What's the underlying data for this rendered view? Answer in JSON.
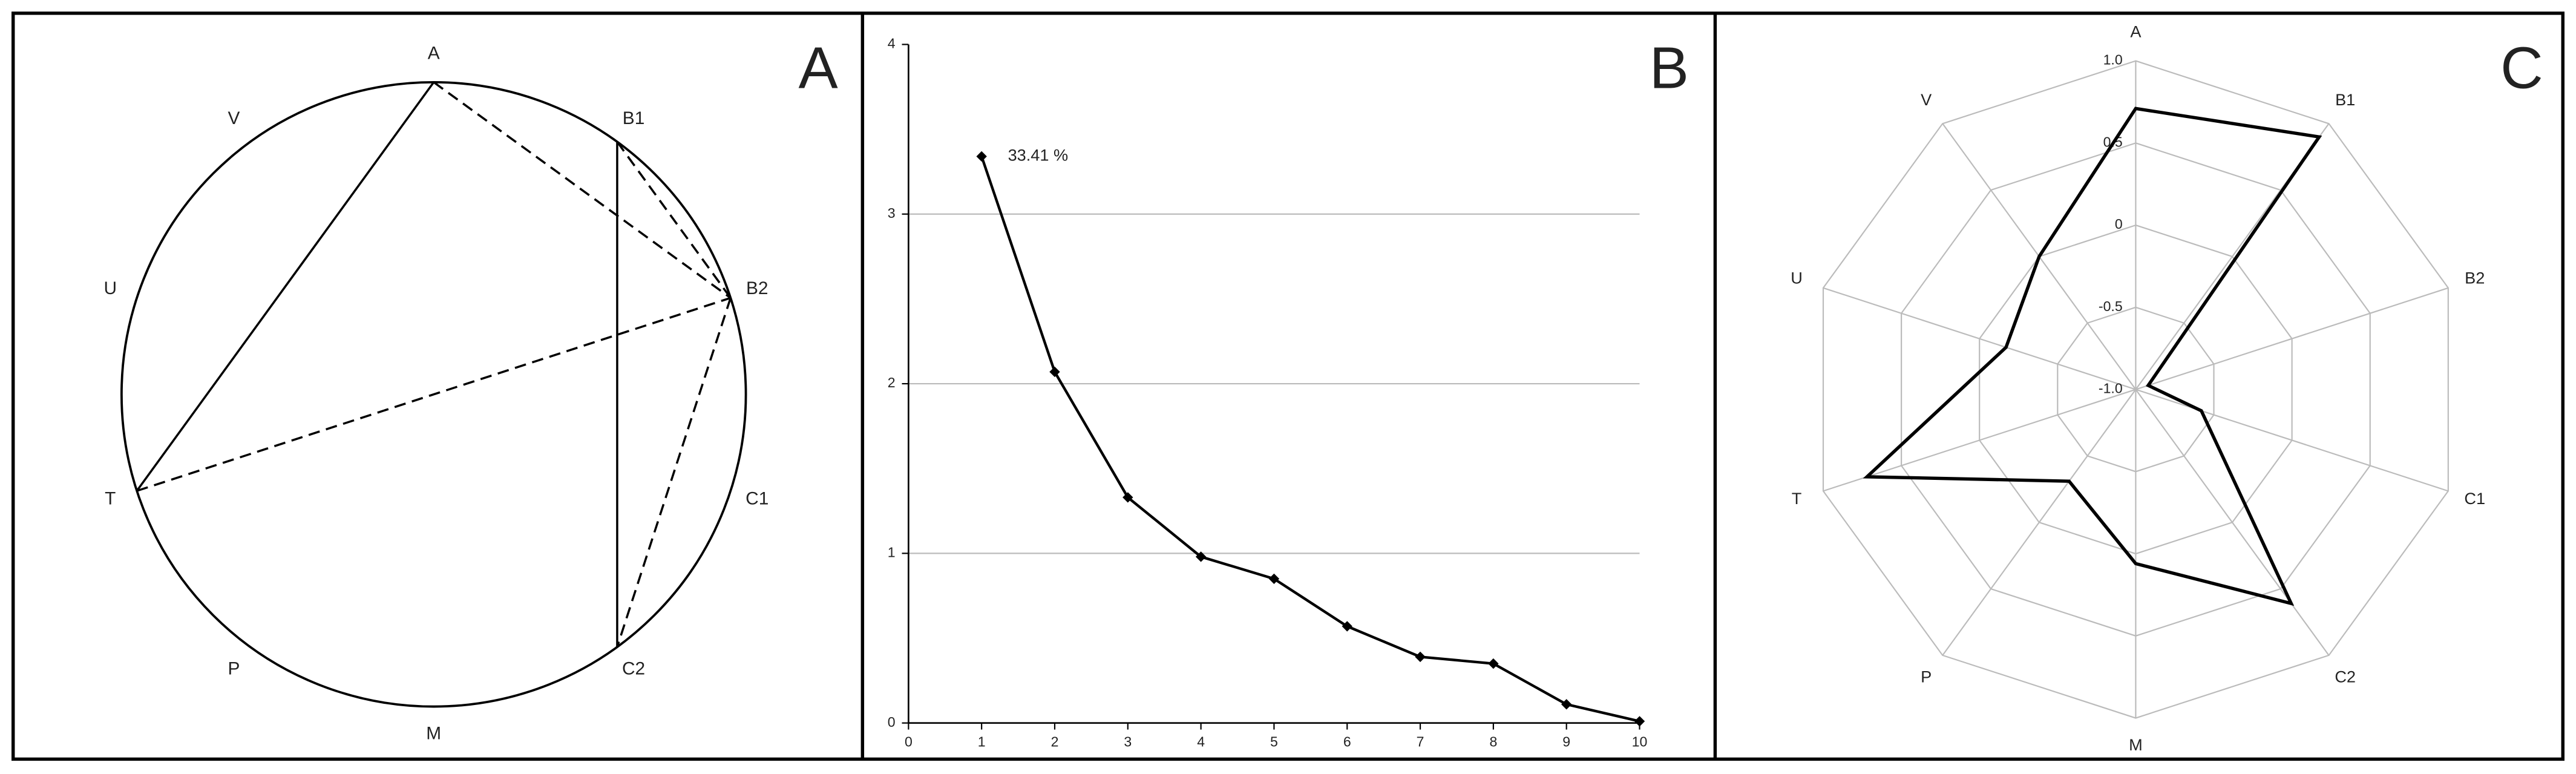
{
  "chart_data": [
    {
      "type": "circle-diagram",
      "panel_label": "A",
      "nodes": [
        "A",
        "B1",
        "B2",
        "C1",
        "C2",
        "M",
        "P",
        "T",
        "U",
        "V"
      ],
      "chords": [
        [
          "A",
          "T",
          "solid"
        ],
        [
          "B1",
          "C2",
          "solid"
        ],
        [
          "A",
          "B2",
          "dashed"
        ],
        [
          "B1",
          "B2",
          "dashed"
        ],
        [
          "T",
          "B2",
          "dashed"
        ],
        [
          "B2",
          "C2",
          "dashed"
        ]
      ]
    },
    {
      "type": "line",
      "panel_label": "B",
      "x": [
        1,
        2,
        3,
        4,
        5,
        6,
        7,
        8,
        9,
        10
      ],
      "values": [
        3.34,
        2.07,
        1.33,
        0.98,
        0.85,
        0.57,
        0.39,
        0.35,
        0.11,
        0.01
      ],
      "color": "#000000",
      "annotation": "33.41 %",
      "xlim": [
        0,
        10
      ],
      "xticks": [
        0,
        1,
        2,
        3,
        4,
        5,
        6,
        7,
        8,
        9,
        10
      ],
      "ylim": [
        0,
        4
      ],
      "yticks": [
        0,
        1,
        2,
        3,
        4
      ],
      "grid": true
    },
    {
      "type": "radar",
      "panel_label": "C",
      "categories": [
        "A",
        "B1",
        "B2",
        "C1",
        "C2",
        "M",
        "P",
        "T",
        "U",
        "V"
      ],
      "values": [
        0.71,
        0.9,
        -0.92,
        -0.58,
        0.61,
        0.06,
        -0.31,
        0.72,
        -0.17,
        0.0
      ],
      "color": "#000000",
      "rlim": [
        -1,
        1
      ],
      "rticks": [
        {
          "value": 1,
          "label": "1.0"
        },
        0.5,
        0,
        -0.5,
        {
          "value": -1,
          "label": "-1.0"
        }
      ],
      "grid": true
    }
  ]
}
